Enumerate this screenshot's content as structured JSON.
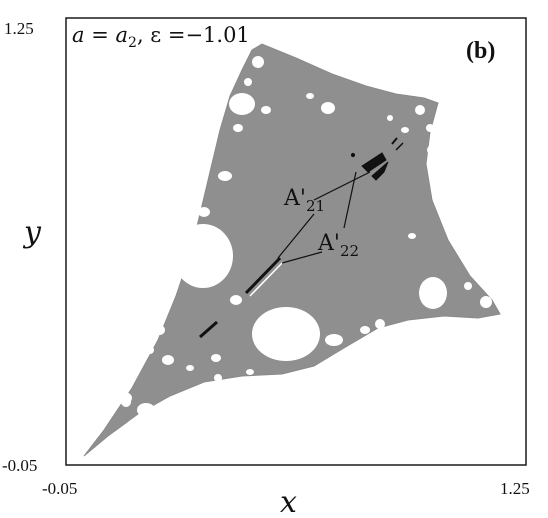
{
  "figure": {
    "title": "a = a₂, ε =−1.01",
    "title_parts": {
      "a": "a",
      "eq1": " = ",
      "a_sub_main": "a",
      "a_sub": "2",
      "comma_eps": ", ε =−1.01"
    },
    "panel_label": "(b)",
    "x_label": "x",
    "y_label": "y",
    "x_ticks": [
      "-0.05",
      "1.25"
    ],
    "y_ticks": [
      "1.25",
      "-0.05"
    ],
    "annotations": [
      {
        "main": "A'",
        "sub": "21"
      },
      {
        "main": "A'",
        "sub": "22"
      }
    ],
    "colors": {
      "region_fill": "#8f8f8f",
      "holes": "#ffffff",
      "frame": "#1a1a1a",
      "attractor": "#111111"
    }
  }
}
